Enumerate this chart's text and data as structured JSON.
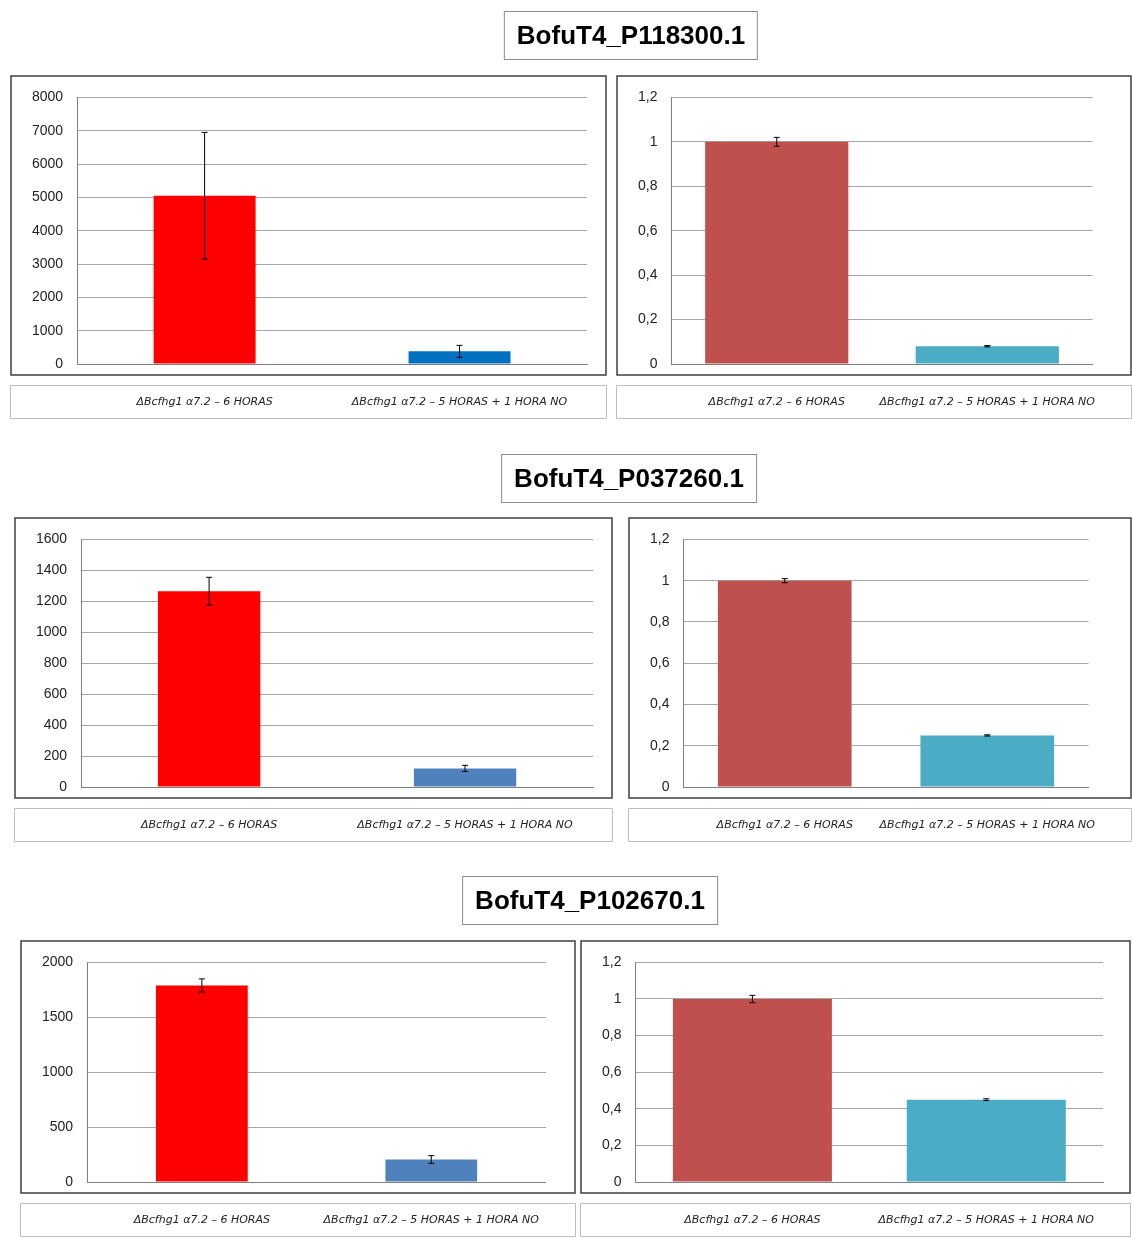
{
  "chart_data": [
    {
      "type": "bar",
      "title": "BofuT4_P118300.1",
      "categories": [
        "ΔBcfhg1 α7.2 – 6 HORAS",
        "ΔBcfhg1 α7.2 – 5 HORAS + 1 HORA NO"
      ],
      "values": [
        5050,
        380
      ],
      "errors": [
        1900,
        180
      ],
      "colors": [
        "#ff0000",
        "#0070c0"
      ],
      "ylim": [
        0,
        8000
      ],
      "yticks": [
        0,
        1000,
        2000,
        3000,
        4000,
        5000,
        6000,
        7000,
        8000
      ],
      "grid": "y"
    },
    {
      "type": "bar",
      "categories": [
        "ΔBcfhg1 α7.2 – 6 HORAS",
        "ΔBcfhg1 α7.2 – 5 HORAS + 1 HORA NO"
      ],
      "values": [
        1,
        0.08
      ],
      "errors": [
        0.02,
        0.003
      ],
      "colors": [
        "#c0504d",
        "#4bacc6"
      ],
      "ylim": [
        0,
        1.2
      ],
      "yticks": [
        0,
        {
          "value": 0.2,
          "label": "0,2"
        },
        {
          "value": 0.4,
          "label": "0,4"
        },
        {
          "value": 0.6,
          "label": "0,6"
        },
        {
          "value": 0.8,
          "label": "0,8"
        },
        1,
        {
          "value": 1.2,
          "label": "1,2"
        }
      ],
      "grid": "y"
    },
    {
      "type": "bar",
      "title": "BofuT4_P037260.1",
      "categories": [
        "ΔBcfhg1 α7.2 – 6 HORAS",
        "ΔBcfhg1 α7.2 – 5 HORAS + 1 HORA NO"
      ],
      "values": [
        1265,
        120
      ],
      "errors": [
        90,
        20
      ],
      "colors": [
        "#ff0000",
        "#4f81bd"
      ],
      "ylim": [
        0,
        1600
      ],
      "yticks": [
        0,
        200,
        400,
        600,
        800,
        1000,
        1200,
        1400,
        1600
      ],
      "grid": "y"
    },
    {
      "type": "bar",
      "categories": [
        "ΔBcfhg1 α7.2 – 6 HORAS",
        "ΔBcfhg1 α7.2 – 5 HORAS + 1 HORA NO"
      ],
      "values": [
        1,
        0.25
      ],
      "errors": [
        0.01,
        0.003
      ],
      "colors": [
        "#c0504d",
        "#4bacc6"
      ],
      "ylim": [
        0,
        1.2
      ],
      "yticks": [
        0,
        {
          "value": 0.2,
          "label": "0,2"
        },
        {
          "value": 0.4,
          "label": "0,4"
        },
        {
          "value": 0.6,
          "label": "0,6"
        },
        {
          "value": 0.8,
          "label": "0,8"
        },
        1,
        {
          "value": 1.2,
          "label": "1,2"
        }
      ],
      "grid": "y"
    },
    {
      "type": "bar",
      "title": "BofuT4_P102670.1",
      "categories": [
        "ΔBcfhg1 α7.2 – 6 HORAS",
        "ΔBcfhg1 α7.2 – 5 HORAS + 1 HORA NO"
      ],
      "values": [
        1790,
        205
      ],
      "errors": [
        60,
        35
      ],
      "colors": [
        "#ff0000",
        "#4f81bd"
      ],
      "ylim": [
        0,
        2000
      ],
      "yticks": [
        0,
        500,
        1000,
        1500,
        2000
      ],
      "grid": "y"
    },
    {
      "type": "bar",
      "categories": [
        "ΔBcfhg1 α7.2 – 6 HORAS",
        "ΔBcfhg1 α7.2 – 5 HORAS + 1 HORA NO"
      ],
      "values": [
        1,
        0.45
      ],
      "errors": [
        0.02,
        0.005
      ],
      "colors": [
        "#c0504d",
        "#4bacc6"
      ],
      "ylim": [
        0,
        1.2
      ],
      "yticks": [
        0,
        {
          "value": 0.2,
          "label": "0,2"
        },
        {
          "value": 0.4,
          "label": "0,4"
        },
        {
          "value": 0.6,
          "label": "0,6"
        },
        {
          "value": 0.8,
          "label": "0,8"
        },
        1,
        {
          "value": 1.2,
          "label": "1,2"
        }
      ],
      "grid": "y"
    }
  ]
}
